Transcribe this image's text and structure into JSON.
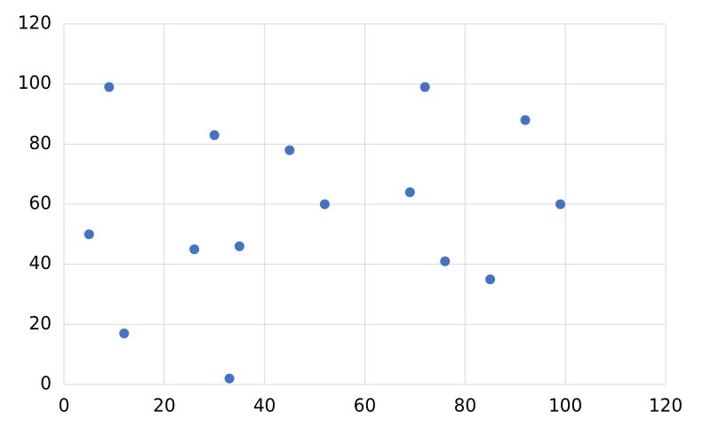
{
  "chart_data": {
    "type": "scatter",
    "color": "#4472c4",
    "grid": true,
    "x": [
      5,
      9,
      12,
      26,
      30,
      33,
      35,
      45,
      52,
      69,
      72,
      76,
      85,
      92,
      99
    ],
    "values": [
      50,
      99,
      17,
      45,
      83,
      2,
      46,
      78,
      60,
      64,
      99,
      41,
      35,
      88,
      60
    ],
    "xlim": [
      0,
      120
    ],
    "ylim": [
      0,
      120
    ],
    "xticks": [
      0,
      20,
      40,
      60,
      80,
      100,
      120
    ],
    "yticks": [
      0,
      20,
      40,
      60,
      80,
      100,
      120
    ]
  }
}
